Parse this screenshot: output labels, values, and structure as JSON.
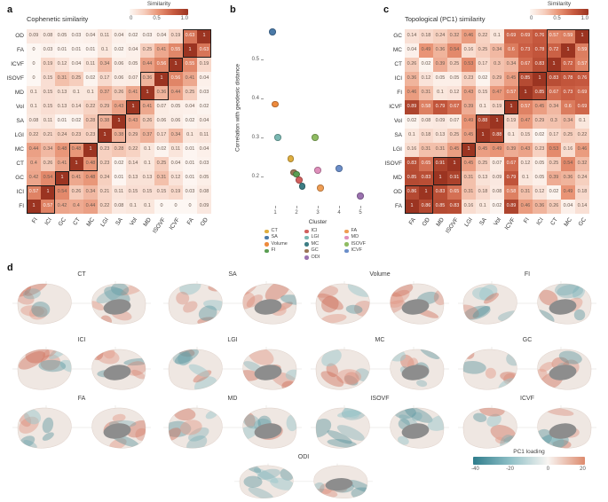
{
  "panels": {
    "a_label": "a",
    "b_label": "b",
    "c_label": "c",
    "d_label": "d"
  },
  "colors": {
    "heat_stops": [
      "#fdf7f3",
      "#f6cebd",
      "#e89273",
      "#c75a3f",
      "#9b3421"
    ],
    "cluster_box": "#1a1a1a",
    "pc1_teal": "#2f7d8c",
    "pc1_salmon": "#dd8a6d"
  },
  "chart_data": [
    {
      "id": "a",
      "type": "heatmap",
      "title": "Cophenetic similarity",
      "colorbar_title": "Similarity",
      "colorbar_ticks": [
        "0",
        "0.5",
        "1.0"
      ],
      "vmin": 0,
      "vmax": 1,
      "x_labels": [
        "FI",
        "ICI",
        "GC",
        "CT",
        "MC",
        "LGI",
        "SA",
        "Vol",
        "MD",
        "ISOVF",
        "ICVF",
        "FA",
        "OD"
      ],
      "y_labels": [
        "OD",
        "FA",
        "ICVF",
        "ISOVF",
        "MD",
        "Vol",
        "SA",
        "LGI",
        "MC",
        "CT",
        "GC",
        "ICI",
        "FI"
      ],
      "values": [
        [
          0.09,
          0.08,
          0.05,
          0.03,
          0.04,
          0.11,
          0.04,
          0.02,
          0.03,
          0.04,
          0.19,
          0.63,
          1
        ],
        [
          0,
          0.03,
          0.01,
          0.01,
          0.01,
          0.1,
          0.02,
          0.04,
          0.25,
          0.41,
          0.55,
          1,
          0.63
        ],
        [
          0,
          0.19,
          0.12,
          0.04,
          0.11,
          0.34,
          0.06,
          0.05,
          0.44,
          0.56,
          1,
          0.55,
          0.19
        ],
        [
          0,
          0.15,
          0.31,
          0.25,
          0.02,
          0.17,
          0.06,
          0.07,
          0.36,
          1,
          0.56,
          0.41,
          0.04
        ],
        [
          0.1,
          0.15,
          0.13,
          0.1,
          0.1,
          0.37,
          0.26,
          0.41,
          1,
          0.36,
          0.44,
          0.25,
          0.03
        ],
        [
          0.1,
          0.15,
          0.13,
          0.14,
          0.22,
          0.29,
          0.43,
          1,
          0.41,
          0.07,
          0.05,
          0.04,
          0.02
        ],
        [
          0.08,
          0.11,
          0.01,
          0.02,
          0.28,
          0.38,
          1,
          0.43,
          0.26,
          0.06,
          0.06,
          0.02,
          0.04
        ],
        [
          0.22,
          0.21,
          0.24,
          0.23,
          0.23,
          1,
          0.38,
          0.29,
          0.37,
          0.17,
          0.34,
          0.1,
          0.11
        ],
        [
          0.44,
          0.34,
          0.48,
          0.48,
          1,
          0.23,
          0.28,
          0.22,
          0.1,
          0.02,
          0.11,
          0.01,
          0.04
        ],
        [
          0.4,
          0.26,
          0.41,
          1,
          0.48,
          0.23,
          0.02,
          0.14,
          0.1,
          0.25,
          0.04,
          0.01,
          0.03
        ],
        [
          0.42,
          0.54,
          1,
          0.41,
          0.48,
          0.24,
          0.01,
          0.13,
          0.13,
          0.31,
          0.12,
          0.01,
          0.05
        ],
        [
          0.57,
          1,
          0.54,
          0.26,
          0.34,
          0.21,
          0.11,
          0.15,
          0.15,
          0.15,
          0.19,
          0.03,
          0.08
        ],
        [
          1,
          0.57,
          0.42,
          0.4,
          0.44,
          0.22,
          0.08,
          0.1,
          0.1,
          0,
          0,
          0,
          0.09
        ]
      ],
      "cluster_boxes": [
        {
          "start": 0,
          "size": 2
        },
        {
          "start": 2,
          "size": 1
        },
        {
          "start": 3,
          "size": 2
        },
        {
          "start": 5,
          "size": 2
        },
        {
          "start": 7,
          "size": 1
        },
        {
          "start": 8,
          "size": 2
        },
        {
          "start": 10,
          "size": 1
        },
        {
          "start": 11,
          "size": 2
        }
      ]
    },
    {
      "id": "b",
      "type": "scatter",
      "xlabel": "Cluster",
      "ylabel": "Correlation with geodesic distance",
      "x_ticks": [
        "1",
        "2",
        "3",
        "4",
        "5"
      ],
      "y_ticks": [
        "0.2",
        "0.3",
        "0.4",
        "0.5"
      ],
      "ylim": [
        0.12,
        0.62
      ],
      "points": [
        {
          "measure": "SA",
          "cluster": 1,
          "value": 0.57
        },
        {
          "measure": "Volume",
          "cluster": 1,
          "value": 0.385
        },
        {
          "measure": "LGI",
          "cluster": 1,
          "value": 0.3
        },
        {
          "measure": "CT",
          "cluster": 2,
          "value": 0.245
        },
        {
          "measure": "GC",
          "cluster": 2,
          "value": 0.21
        },
        {
          "measure": "FI",
          "cluster": 2,
          "value": 0.205
        },
        {
          "measure": "ICI",
          "cluster": 2,
          "value": 0.19
        },
        {
          "measure": "MC",
          "cluster": 2,
          "value": 0.175
        },
        {
          "measure": "ISOVF",
          "cluster": 3,
          "value": 0.3
        },
        {
          "measure": "MD",
          "cluster": 3,
          "value": 0.215
        },
        {
          "measure": "FA",
          "cluster": 3,
          "value": 0.17
        },
        {
          "measure": "ICVF",
          "cluster": 4,
          "value": 0.22
        },
        {
          "measure": "ODI",
          "cluster": 5,
          "value": 0.15
        }
      ],
      "legend": [
        {
          "label": "CT",
          "color": "#dfae3f"
        },
        {
          "label": "SA",
          "color": "#4a7aa8"
        },
        {
          "label": "Volume",
          "color": "#ee8a3c"
        },
        {
          "label": "FI",
          "color": "#5a9e52"
        },
        {
          "label": "ICI",
          "color": "#d1605e"
        },
        {
          "label": "LGI",
          "color": "#7ab8b2"
        },
        {
          "label": "MC",
          "color": "#3d7d84"
        },
        {
          "label": "GC",
          "color": "#9c7555"
        },
        {
          "label": "ODI",
          "color": "#9b72b0"
        },
        {
          "label": "FA",
          "color": "#ef9d53"
        },
        {
          "label": "MD",
          "color": "#df8fbb"
        },
        {
          "label": "ISOVF",
          "color": "#8fbc62"
        },
        {
          "label": "ICVF",
          "color": "#6b8ec9"
        }
      ]
    },
    {
      "id": "c",
      "type": "heatmap",
      "title": "Topological (PC1) similarity",
      "colorbar_title": "Similarity",
      "colorbar_ticks": [
        "0",
        "0.5",
        "1.0"
      ],
      "vmin": 0,
      "vmax": 1,
      "x_labels": [
        "FA",
        "OD",
        "MD",
        "ISOVF",
        "LGI",
        "SA",
        "Vol",
        "ICVF",
        "FI",
        "ICI",
        "CT",
        "MC",
        "GC"
      ],
      "y_labels": [
        "GC",
        "MC",
        "CT",
        "ICI",
        "FI",
        "ICVF",
        "Vol",
        "SA",
        "LGI",
        "ISOVF",
        "MD",
        "OD",
        "FA"
      ],
      "values": [
        [
          0.14,
          0.18,
          0.24,
          0.32,
          0.46,
          0.22,
          0.1,
          0.69,
          0.69,
          0.76,
          0.57,
          0.59,
          1
        ],
        [
          0.04,
          0.49,
          0.36,
          0.54,
          0.16,
          0.25,
          0.34,
          0.6,
          0.73,
          0.78,
          0.72,
          1,
          0.59
        ],
        [
          0.26,
          0.02,
          0.39,
          0.25,
          0.53,
          0.17,
          0.3,
          0.34,
          0.67,
          0.83,
          1,
          0.72,
          0.57
        ],
        [
          0.36,
          0.12,
          0.05,
          0.05,
          0.23,
          0.02,
          0.29,
          0.45,
          0.85,
          1,
          0.83,
          0.78,
          0.76
        ],
        [
          0.46,
          0.31,
          0.1,
          0.12,
          0.43,
          0.15,
          0.47,
          0.57,
          1,
          0.85,
          0.67,
          0.73,
          0.69
        ],
        [
          0.89,
          0.58,
          0.79,
          0.67,
          0.39,
          0.1,
          0.19,
          1,
          0.57,
          0.45,
          0.34,
          0.6,
          0.69
        ],
        [
          0.02,
          0.08,
          0.09,
          0.07,
          0.49,
          0.88,
          1,
          0.19,
          0.47,
          0.29,
          0.3,
          0.34,
          0.1
        ],
        [
          0.1,
          0.18,
          0.13,
          0.25,
          0.45,
          1,
          0.88,
          0.1,
          0.15,
          0.02,
          0.17,
          0.25,
          0.22
        ],
        [
          0.16,
          0.31,
          0.31,
          0.45,
          1,
          0.45,
          0.49,
          0.39,
          0.43,
          0.23,
          0.53,
          0.16,
          0.46
        ],
        [
          0.83,
          0.65,
          0.91,
          1,
          0.45,
          0.25,
          0.07,
          0.67,
          0.12,
          0.05,
          0.25,
          0.54,
          0.32
        ],
        [
          0.85,
          0.83,
          1,
          0.91,
          0.31,
          0.13,
          0.09,
          0.79,
          0.1,
          0.05,
          0.39,
          0.36,
          0.24
        ],
        [
          0.86,
          1,
          0.83,
          0.65,
          0.31,
          0.18,
          0.08,
          0.58,
          0.31,
          0.12,
          0.02,
          0.49,
          0.18
        ],
        [
          1,
          0.86,
          0.85,
          0.83,
          0.16,
          0.1,
          0.02,
          0.89,
          0.46,
          0.36,
          0.26,
          0.04,
          0.14
        ]
      ],
      "cluster_boxes": [
        {
          "start": 0,
          "size": 2
        },
        {
          "start": 2,
          "size": 2
        },
        {
          "start": 4,
          "size": 1
        },
        {
          "start": 5,
          "size": 2
        },
        {
          "start": 7,
          "size": 1
        },
        {
          "start": 8,
          "size": 2
        },
        {
          "start": 10,
          "size": 3
        }
      ]
    },
    {
      "id": "d",
      "type": "brain_maps",
      "rows": [
        [
          "CT",
          "SA",
          "Volume",
          "FI"
        ],
        [
          "ICI",
          "LGI",
          "MC",
          "GC"
        ],
        [
          "FA",
          "MD",
          "ISOVF",
          "ICVF"
        ],
        [
          "ODI"
        ]
      ],
      "colorbar": {
        "title": "PC1 loading",
        "ticks": [
          "-40",
          "-20",
          "0",
          "20"
        ]
      }
    }
  ]
}
